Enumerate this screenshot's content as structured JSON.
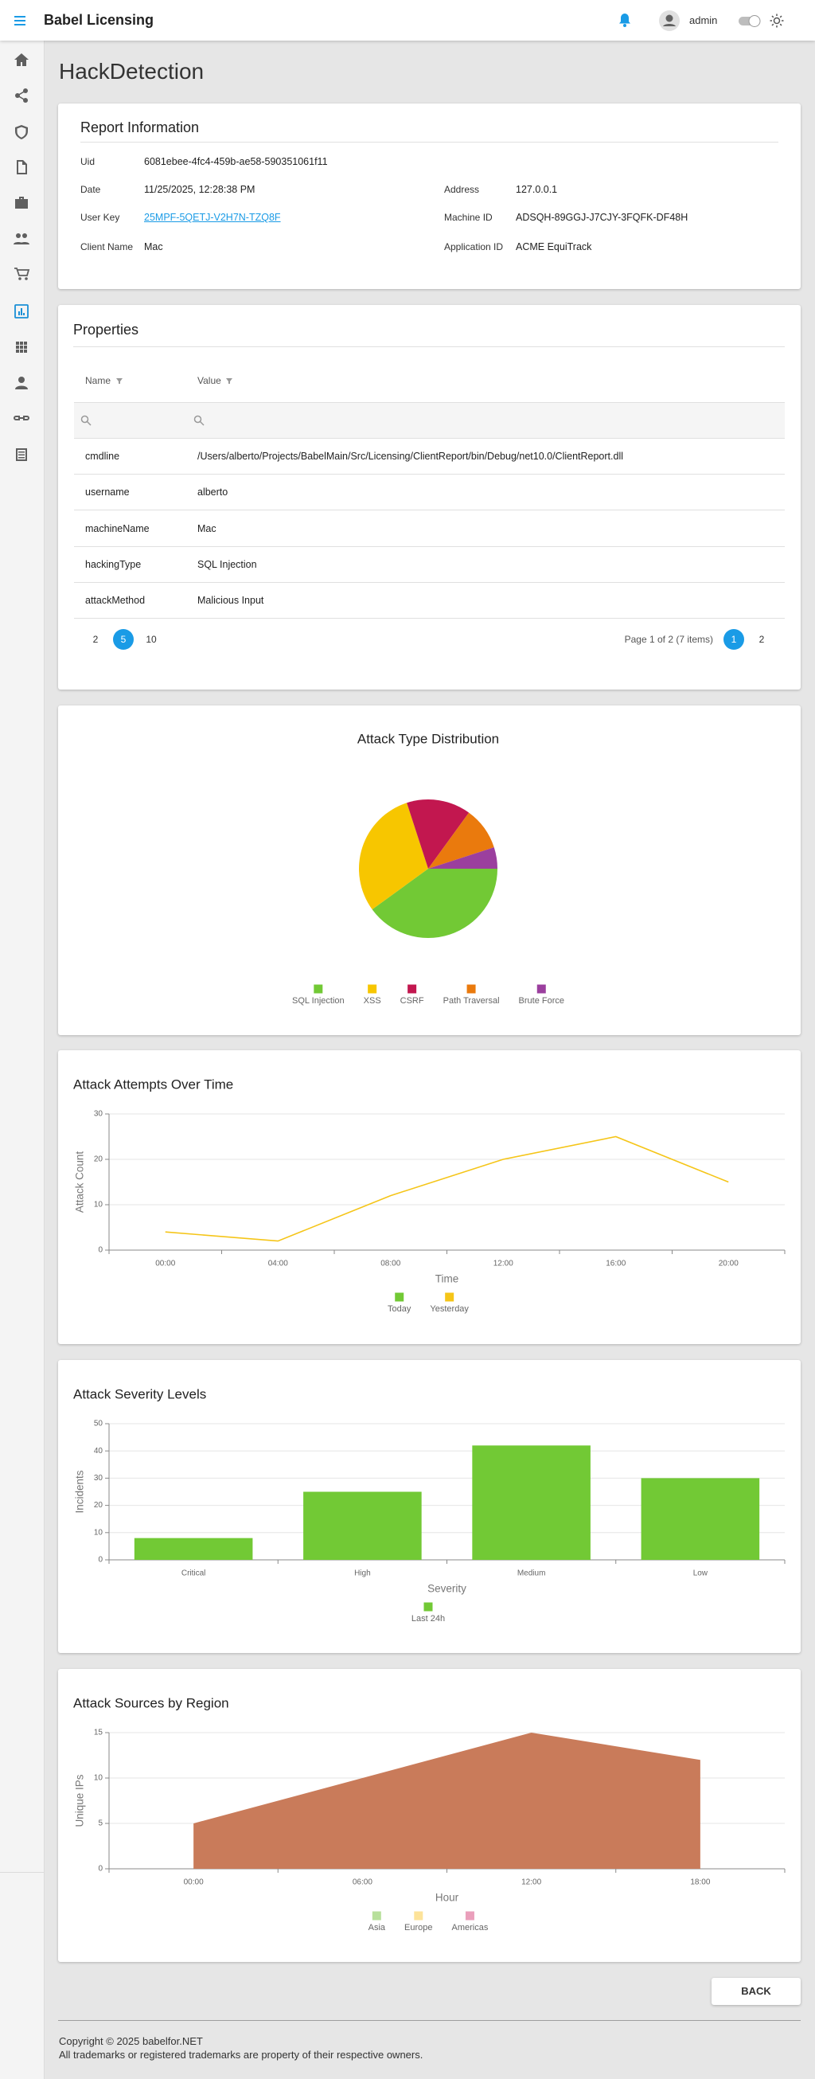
{
  "header": {
    "app_name": "Babel Licensing",
    "user": "admin"
  },
  "page_title": "HackDetection",
  "report": {
    "title": "Report Information",
    "fields": [
      {
        "label": "Uid",
        "value": "6081ebee-4fc4-459b-ae58-590351061f11"
      },
      {
        "label": "Date",
        "value": "11/25/2025, 12:28:38 PM"
      },
      {
        "label": "Address",
        "value": "127.0.0.1"
      },
      {
        "label": "User Key",
        "value": "25MPF-5QETJ-V2H7N-TZQ8F"
      },
      {
        "label": "Machine ID",
        "value": "ADSQH-89GGJ-J7CJY-3FQFK-DF48H"
      },
      {
        "label": "Client Name",
        "value": "Mac"
      },
      {
        "label": "Application ID",
        "value": "ACME EquiTrack"
      }
    ]
  },
  "properties": {
    "title": "Properties",
    "columns": [
      "Name",
      "Value"
    ],
    "rows": [
      [
        "cmdline",
        "/Users/alberto/Projects/BabelMain/Src/Licensing/ClientReport/bin/Debug/net10.0/ClientReport.dll"
      ],
      [
        "username",
        "alberto"
      ],
      [
        "machineName",
        "Mac"
      ],
      [
        "hackingType",
        "SQL Injection"
      ],
      [
        "attackMethod",
        "Malicious Input"
      ]
    ],
    "pager": {
      "page_sizes": [
        2,
        5,
        10
      ],
      "selected_page_size": 5,
      "info": "Page 1 of 2 (7 items)",
      "pages": [
        1,
        2
      ],
      "current_page": 1
    }
  },
  "chart_data": [
    {
      "type": "pie",
      "title": "Attack Type Distribution",
      "categories": [
        "SQL Injection",
        "XSS",
        "CSRF",
        "Path Traversal",
        "Brute Force"
      ],
      "values": [
        40,
        30,
        15,
        10,
        5
      ],
      "colors": [
        "#72c935",
        "#f7c600",
        "#c2174f",
        "#ea7a0d",
        "#9b3f9e"
      ]
    },
    {
      "type": "line",
      "title": "Attack Attempts Over Time",
      "x_label": "Time",
      "y_label": "Attack Count",
      "categories": [
        "00:00",
        "04:00",
        "08:00",
        "12:00",
        "16:00",
        "20:00"
      ],
      "series": [
        {
          "name": "Today",
          "color": "#72c935",
          "values": [
            null,
            null,
            null,
            null,
            null,
            null
          ]
        },
        {
          "name": "Yesterday",
          "color": "#f5c518",
          "values": [
            4,
            2,
            12,
            20,
            25,
            15
          ]
        }
      ],
      "ylim": [
        0,
        30
      ],
      "yticks": [
        0,
        10,
        20,
        30
      ],
      "grid": true
    },
    {
      "type": "bar",
      "title": "Attack Severity Levels",
      "x_label": "Severity",
      "y_label": "Incidents",
      "categories": [
        "Critical",
        "High",
        "Medium",
        "Low"
      ],
      "series": [
        {
          "name": "Last 24h",
          "color": "#72c935",
          "values": [
            8,
            25,
            42,
            30
          ]
        }
      ],
      "ylim": [
        0,
        50
      ],
      "yticks": [
        0,
        10,
        20,
        30,
        40,
        50
      ],
      "grid": true
    },
    {
      "type": "area",
      "title": "Attack Sources by Region",
      "x_label": "Hour",
      "y_label": "Unique IPs",
      "categories": [
        "00:00",
        "06:00",
        "12:00",
        "18:00"
      ],
      "series": [
        {
          "name": "Asia",
          "color": "#b8e09c",
          "values": [
            5,
            10,
            15,
            12
          ]
        },
        {
          "name": "Europe",
          "color": "#fde39a",
          "values": [
            null,
            null,
            null,
            null
          ]
        },
        {
          "name": "Americas",
          "color": "#ea9fbb",
          "values": [
            null,
            null,
            null,
            null
          ]
        }
      ],
      "area_color": "#c97b5a",
      "ylim": [
        0,
        15
      ],
      "yticks": [
        0,
        5,
        10,
        15
      ],
      "grid": true
    }
  ],
  "back_button": "BACK",
  "footer": {
    "copyright": "Copyright © 2025 babelfor.NET",
    "trademark": "All trademarks or registered trademarks are property of their respective owners."
  }
}
